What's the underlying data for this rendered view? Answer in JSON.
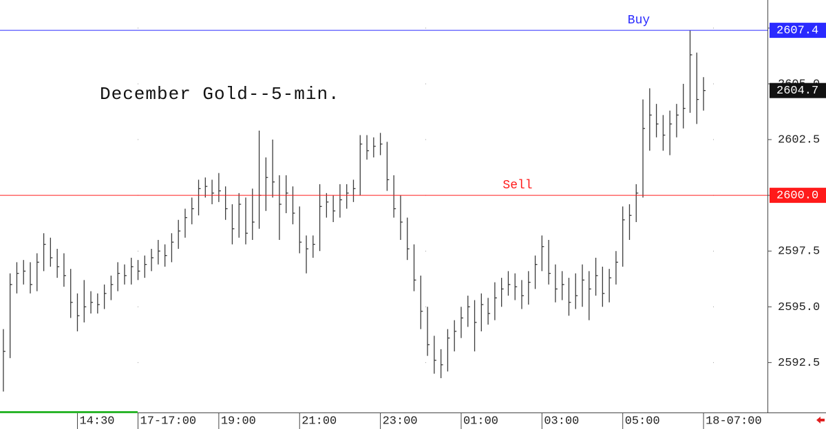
{
  "chart_data": {
    "type": "ohlc",
    "title": "December Gold--5-min.",
    "high": [
      2594.0,
      2596.5,
      2597.0,
      2597.1,
      2597.0,
      2597.4,
      2598.3,
      2598.1,
      2597.6,
      2597.4,
      2596.7,
      2595.6,
      2596.2,
      2595.7,
      2595.6,
      2596.0,
      2596.4,
      2597.0,
      2596.9,
      2597.2,
      2597.1,
      2597.3,
      2597.6,
      2598.0,
      2597.8,
      2598.3,
      2598.9,
      2599.4,
      2599.9,
      2600.7,
      2600.8,
      2600.7,
      2601.0,
      2600.4,
      2599.6,
      2600.1,
      2599.9,
      2600.3,
      2602.9,
      2601.7,
      2602.5,
      2600.9,
      2600.9,
      2600.4,
      2599.5,
      2598.2,
      2598.2,
      2600.5,
      2600.1,
      2600.0,
      2600.5,
      2600.5,
      2600.7,
      2602.7,
      2602.7,
      2602.6,
      2602.8,
      2602.4,
      2600.9,
      2600.0,
      2599.0,
      2597.8,
      2596.4,
      2595.0,
      2593.7,
      2593.1,
      2594.0,
      2594.4,
      2595.0,
      2595.5,
      2595.3,
      2595.6,
      2595.4,
      2596.1,
      2596.3,
      2596.6,
      2596.5,
      2596.2,
      2596.6,
      2597.3,
      2598.2,
      2598.0,
      2596.9,
      2596.6,
      2596.3,
      2596.5,
      2596.9,
      2596.6,
      2597.2,
      2596.8,
      2596.7,
      2597.5,
      2599.5,
      2599.6,
      2600.5,
      2604.3,
      2604.8,
      2604.1,
      2603.6,
      2603.8,
      2604.1,
      2605.0,
      2607.4,
      2606.4,
      2605.3
    ],
    "low": [
      2591.2,
      2592.7,
      2595.6,
      2596.0,
      2595.6,
      2595.7,
      2596.6,
      2596.8,
      2596.3,
      2595.9,
      2594.5,
      2593.9,
      2594.3,
      2594.7,
      2594.7,
      2594.9,
      2595.3,
      2595.7,
      2596.0,
      2596.0,
      2596.2,
      2596.3,
      2596.6,
      2596.9,
      2596.8,
      2597.0,
      2597.6,
      2598.1,
      2598.7,
      2599.1,
      2599.9,
      2599.6,
      2599.7,
      2598.9,
      2597.8,
      2598.1,
      2597.8,
      2598.0,
      2598.5,
      2599.3,
      2599.9,
      2598.0,
      2599.2,
      2598.7,
      2597.4,
      2596.5,
      2597.2,
      2597.5,
      2599.0,
      2598.8,
      2599.0,
      2599.4,
      2599.7,
      2600.0,
      2601.6,
      2601.7,
      2601.8,
      2600.2,
      2599.0,
      2598.0,
      2597.1,
      2595.7,
      2594.0,
      2592.8,
      2592.0,
      2591.8,
      2592.1,
      2593.0,
      2593.6,
      2594.1,
      2593.0,
      2593.9,
      2594.2,
      2594.4,
      2595.0,
      2595.5,
      2595.3,
      2594.9,
      2595.1,
      2595.8,
      2596.6,
      2596.0,
      2595.2,
      2595.3,
      2594.6,
      2594.9,
      2595.0,
      2594.4,
      2595.5,
      2595.0,
      2595.2,
      2596.0,
      2596.8,
      2598.0,
      2598.8,
      2599.9,
      2602.0,
      2602.6,
      2602.0,
      2601.8,
      2602.6,
      2603.0,
      2603.7,
      2603.2,
      2603.8
    ],
    "close": [
      2593.0,
      2596.0,
      2596.5,
      2596.6,
      2596.0,
      2597.0,
      2597.8,
      2597.2,
      2596.8,
      2596.4,
      2595.2,
      2594.6,
      2595.0,
      2595.2,
      2595.1,
      2595.6,
      2596.0,
      2596.5,
      2596.4,
      2596.8,
      2596.6,
      2596.9,
      2597.2,
      2597.5,
      2597.3,
      2597.9,
      2598.4,
      2599.0,
      2599.4,
      2600.3,
      2600.4,
      2600.1,
      2600.2,
      2599.4,
      2598.5,
      2599.6,
      2598.3,
      2598.8,
      2600.0,
      2600.8,
      2600.6,
      2599.6,
      2600.1,
      2599.2,
      2597.9,
      2597.6,
      2597.8,
      2599.5,
      2599.7,
      2599.3,
      2599.8,
      2600.1,
      2600.3,
      2602.3,
      2602.0,
      2602.2,
      2602.3,
      2600.7,
      2599.4,
      2598.8,
      2597.6,
      2596.2,
      2594.8,
      2593.3,
      2592.6,
      2592.4,
      2593.6,
      2593.9,
      2594.5,
      2595.0,
      2594.3,
      2595.1,
      2594.7,
      2595.4,
      2595.8,
      2596.0,
      2595.9,
      2595.5,
      2596.1,
      2596.9,
      2597.7,
      2596.5,
      2595.8,
      2596.0,
      2595.2,
      2595.5,
      2596.2,
      2595.8,
      2596.4,
      2595.6,
      2596.3,
      2597.0,
      2598.9,
      2599.1,
      2600.1,
      2603.0,
      2603.6,
      2603.2,
      2602.7,
      2603.2,
      2603.6,
      2603.9,
      2606.3,
      2604.3,
      2604.7
    ],
    "color": "#3a3a3a",
    "xlim": [
      -0.5,
      113.5
    ],
    "xticks": [
      {
        "value": 11,
        "label": "14:30"
      },
      {
        "value": 20,
        "label": "17-17:00"
      },
      {
        "value": 32,
        "label": "19:00"
      },
      {
        "value": 44,
        "label": "21:00"
      },
      {
        "value": 56,
        "label": "23:00"
      },
      {
        "value": 68,
        "label": "01:00"
      },
      {
        "value": 80,
        "label": "03:00"
      },
      {
        "value": 92,
        "label": "05:00"
      },
      {
        "value": 104,
        "label": "18-07:00"
      }
    ],
    "ylim": [
      2590.26,
      2608.76
    ],
    "yticks": [
      2592.5,
      {
        "value": 2595.0,
        "label": "2595.0"
      },
      2597.5,
      {
        "value": 2600.0,
        "label": "2600.0"
      },
      2602.5,
      {
        "value": 2605.0,
        "label": "2605.0"
      },
      2607.5
    ],
    "levels": [
      {
        "name": "Buy",
        "value": 2607.4,
        "color": "#2a2aff"
      },
      {
        "name": "Sell",
        "value": {
          "value": 2600.0,
          "label": "2600.0"
        },
        "color": "#ff1a1a"
      }
    ],
    "last_price": 2604.7
  }
}
